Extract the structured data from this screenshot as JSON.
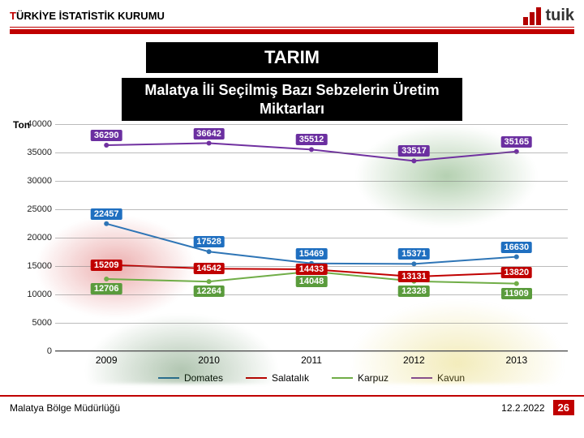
{
  "header": {
    "org_red": "T",
    "org_rest": "ÜRKİYE İSTATİSTİK KURUMU",
    "logo_text": "tuik"
  },
  "banner": {
    "main": "TARIM",
    "sub": "Malatya İli Seçilmiş Bazı Sebzelerin Üretim Miktarları"
  },
  "chart": {
    "type": "line",
    "y_label": "Ton",
    "y_min": 0,
    "y_max": 40000,
    "y_step": 5000,
    "background_color": "#ffffff",
    "grid_color": "#969696",
    "categories": [
      "2009",
      "2010",
      "2011",
      "2012",
      "2013"
    ],
    "series": [
      {
        "name": "Domates",
        "color": "#2e75b6",
        "values": [
          22457,
          17528,
          15469,
          15371,
          16630
        ]
      },
      {
        "name": "Salatalık",
        "color": "#c00000",
        "values": [
          15209,
          14542,
          14433,
          13131,
          13820
        ]
      },
      {
        "name": "Karpuz",
        "color": "#70ad47",
        "values": [
          12706,
          12264,
          14048,
          12328,
          11909
        ]
      },
      {
        "name": "Kavun",
        "color": "#7030a0",
        "values": [
          36290,
          36642,
          35512,
          33517,
          35165
        ]
      }
    ],
    "label_bg": {
      "Domates": "#1f6fc0",
      "Salatalık": "#c00000",
      "Karpuz": "#5a9b3c",
      "Kavun": "#6b2fa0"
    },
    "label_fontsize": 11,
    "axis_fontsize": 11
  },
  "footer": {
    "left": "Malatya Bölge Müdürlüğü",
    "date": "12.2.2022",
    "page": "26"
  }
}
